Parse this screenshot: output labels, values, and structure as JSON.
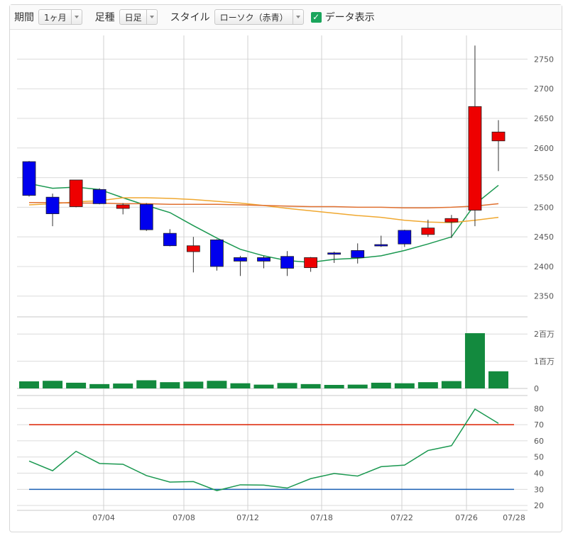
{
  "toolbar": {
    "period_label": "期間",
    "period_value": "1ヶ月",
    "bar_label": "足種",
    "bar_value": "日足",
    "style_label": "スタイル",
    "style_value": "ローソク（赤青）",
    "data_display_label": "データ表示",
    "data_display_checked": true
  },
  "colors": {
    "up_candle": "#ee0000",
    "down_candle": "#0000ee",
    "volume": "#138a3e",
    "ma_short": "#1a9850",
    "ma_mid": "#f0a830",
    "ma_long": "#e07030",
    "rsi_line": "#1a9850",
    "rsi_upper": "#dd2200",
    "rsi_lower": "#1a5fb4"
  },
  "chart_data": [
    {
      "type": "candlestick",
      "x_ticks": [
        "07/04",
        "07/08",
        "07/12",
        "07/18",
        "07/22",
        "07/26",
        "07/28"
      ],
      "y_ticks": [
        2350,
        2400,
        2450,
        2500,
        2550,
        2600,
        2650,
        2700,
        2750
      ],
      "ylim": [
        2315,
        2790
      ],
      "candles": [
        {
          "open": 2577,
          "high": 2578,
          "low": 2518,
          "close": 2520
        },
        {
          "open": 2517,
          "high": 2523,
          "low": 2468,
          "close": 2489
        },
        {
          "open": 2501,
          "high": 2546,
          "low": 2500,
          "close": 2546
        },
        {
          "open": 2530,
          "high": 2532,
          "low": 2505,
          "close": 2506
        },
        {
          "open": 2498,
          "high": 2507,
          "low": 2488,
          "close": 2504
        },
        {
          "open": 2505,
          "high": 2507,
          "low": 2460,
          "close": 2462
        },
        {
          "open": 2456,
          "high": 2463,
          "low": 2434,
          "close": 2435
        },
        {
          "open": 2425,
          "high": 2450,
          "low": 2390,
          "close": 2435
        },
        {
          "open": 2445,
          "high": 2446,
          "low": 2393,
          "close": 2400
        },
        {
          "open": 2415,
          "high": 2418,
          "low": 2384,
          "close": 2409
        },
        {
          "open": 2415,
          "high": 2418,
          "low": 2397,
          "close": 2409
        },
        {
          "open": 2417,
          "high": 2426,
          "low": 2384,
          "close": 2397
        },
        {
          "open": 2398,
          "high": 2416,
          "low": 2391,
          "close": 2415
        },
        {
          "open": 2423,
          "high": 2425,
          "low": 2406,
          "close": 2421
        },
        {
          "open": 2427,
          "high": 2439,
          "low": 2405,
          "close": 2415
        },
        {
          "open": 2437,
          "high": 2452,
          "low": 2433,
          "close": 2435
        },
        {
          "open": 2461,
          "high": 2462,
          "low": 2433,
          "close": 2438
        },
        {
          "open": 2454,
          "high": 2479,
          "low": 2450,
          "close": 2465
        },
        {
          "open": 2475,
          "high": 2487,
          "low": 2448,
          "close": 2481
        },
        {
          "open": 2495,
          "high": 2773,
          "low": 2468,
          "close": 2670
        },
        {
          "open": 2612,
          "high": 2647,
          "low": 2561,
          "close": 2627
        }
      ],
      "moving_averages": [
        {
          "values": [
            2540,
            2532,
            2534,
            2530,
            2516,
            2503,
            2491,
            2469,
            2448,
            2429,
            2418,
            2410,
            2407,
            2412,
            2414,
            2418,
            2427,
            2438,
            2450,
            2505,
            2537
          ]
        },
        {
          "values": [
            2504,
            2506,
            2509,
            2511,
            2516,
            2516,
            2515,
            2513,
            2510,
            2507,
            2503,
            2498,
            2494,
            2490,
            2486,
            2483,
            2478,
            2475,
            2474,
            2478,
            2483
          ]
        },
        {
          "values": [
            2508,
            2508,
            2507,
            2507,
            2506,
            2506,
            2505,
            2505,
            2505,
            2504,
            2503,
            2502,
            2501,
            2501,
            2500,
            2500,
            2499,
            2499,
            2500,
            2502,
            2506
          ]
        }
      ]
    },
    {
      "type": "bar",
      "title": "volume",
      "y_ticks": [
        "0",
        "1百万",
        "2百万"
      ],
      "ylim": [
        0,
        2.5
      ],
      "unit": "百万",
      "values": [
        0.26,
        0.28,
        0.21,
        0.16,
        0.18,
        0.3,
        0.23,
        0.25,
        0.28,
        0.19,
        0.14,
        0.2,
        0.16,
        0.13,
        0.14,
        0.21,
        0.19,
        0.23,
        0.27,
        2.03,
        0.63
      ]
    },
    {
      "type": "line",
      "y_ticks": [
        20,
        30,
        40,
        50,
        60,
        70,
        80
      ],
      "ylim": [
        17,
        88
      ],
      "values": [
        47.5,
        41.5,
        53.5,
        46,
        45.5,
        38.5,
        34.5,
        34.8,
        29.2,
        32.8,
        32.6,
        30.8,
        36.6,
        39.8,
        38.2,
        44,
        45,
        54,
        57,
        79.6,
        70.8
      ],
      "upper_line": 70,
      "lower_line": 30
    }
  ]
}
